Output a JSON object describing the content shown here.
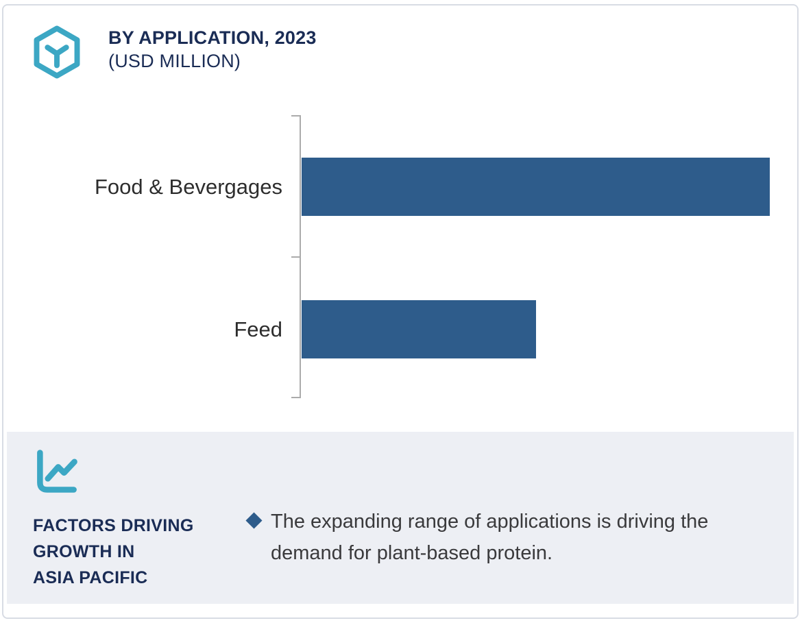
{
  "header": {
    "title": "BY APPLICATION, 2023",
    "subtitle": "(USD MILLION)",
    "icon": "hexagon-cube-icon"
  },
  "chart_data": {
    "type": "bar",
    "orientation": "horizontal",
    "title": "BY APPLICATION, 2023",
    "subtitle": "(USD MILLION)",
    "unit": "USD Million",
    "categories": [
      "Food & Bevergages",
      "Feed"
    ],
    "values": [
      100,
      50
    ],
    "values_note": "no numeric axis or data labels shown in image; values are relative bar lengths (Feed is about half of Food & Bevergages)",
    "value_labels_shown": false,
    "grid": false,
    "legend": "none",
    "bar_color": "#2E5C8B",
    "axis_color": "#ABABAB"
  },
  "footer": {
    "icon": "line-chart-icon",
    "heading_lines": [
      "FACTORS DRIVING",
      "GROWTH IN",
      "ASIA PACIFIC"
    ],
    "bullet_marker": "diamond",
    "bullet_text": "The expanding range of applications is driving the demand for plant-based protein."
  },
  "colors": {
    "navy": "#1A2C55",
    "teal": "#3CA7C4",
    "bar_blue": "#2E5C8B",
    "panel_background": "#EDEFF4",
    "axis_gray": "#ABABAB",
    "body_text": "#3A3A3C",
    "card_border": "#D8DCE4"
  }
}
